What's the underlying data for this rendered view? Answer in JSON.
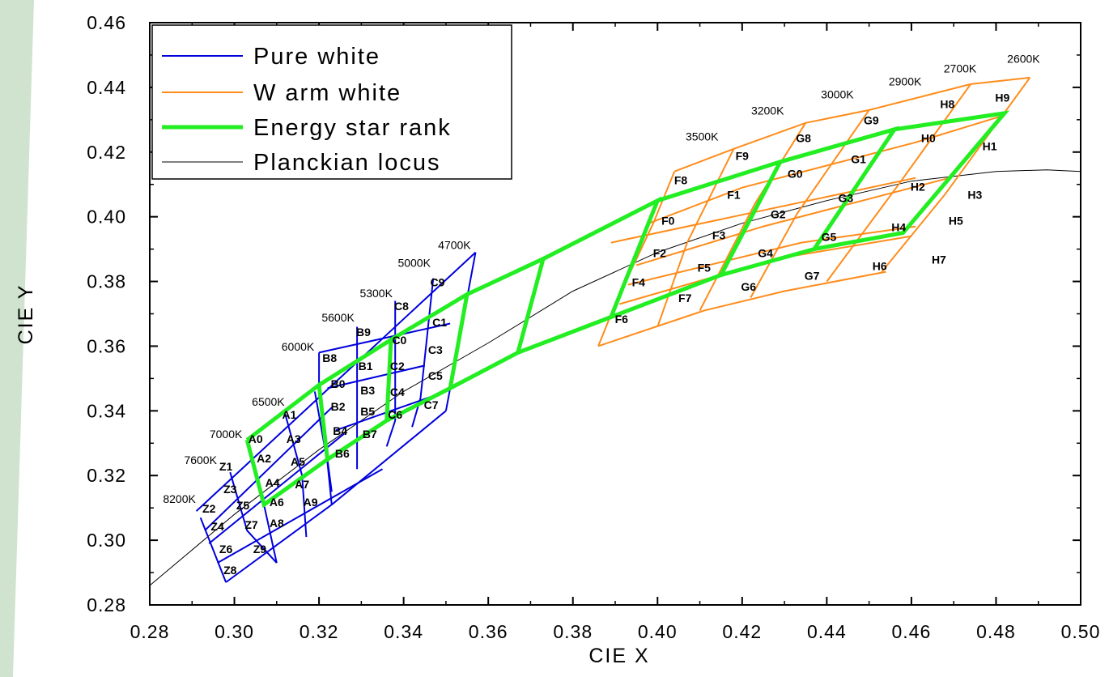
{
  "colors": {
    "pure_white": "#0000dd",
    "warm_white": "#ff8c1a",
    "energy_star": "#22ee22",
    "planckian": "#000000",
    "side_band": "#cfe3cf"
  },
  "chart_data": {
    "type": "line",
    "xlabel": "CIE X",
    "ylabel": "CIE Y",
    "xlim": [
      0.28,
      0.5
    ],
    "ylim": [
      0.28,
      0.46
    ],
    "x_ticks": [
      "0.28",
      "0.30",
      "0.32",
      "0.34",
      "0.36",
      "0.38",
      "0.40",
      "0.42",
      "0.44",
      "0.46",
      "0.48",
      "0.50"
    ],
    "y_ticks": [
      "0.28",
      "0.30",
      "0.32",
      "0.34",
      "0.36",
      "0.38",
      "0.40",
      "0.42",
      "0.44",
      "0.46"
    ],
    "grid": false,
    "legend_position": "top-left",
    "legend": [
      {
        "label": "Pure white",
        "series": "pure_white"
      },
      {
        "label": "W arm white",
        "series": "warm_white"
      },
      {
        "label": "Energy star rank",
        "series": "energy_star"
      },
      {
        "label": "Planckian locus",
        "series": "planckian"
      }
    ],
    "series": [
      {
        "id": "pure_white",
        "name": "Pure white",
        "segments": [
          [
            [
              0.291,
              0.309
            ],
            [
              0.357,
              0.389
            ]
          ],
          [
            [
              0.293,
              0.303
            ],
            [
              0.323,
              0.341
            ]
          ],
          [
            [
              0.294,
              0.299
            ],
            [
              0.326,
              0.333
            ]
          ],
          [
            [
              0.296,
              0.293
            ],
            [
              0.335,
              0.322
            ]
          ],
          [
            [
              0.298,
              0.287
            ],
            [
              0.323,
              0.311
            ]
          ],
          [
            [
              0.32,
              0.358
            ],
            [
              0.351,
              0.367
            ]
          ],
          [
            [
              0.322,
              0.347
            ],
            [
              0.345,
              0.354
            ]
          ],
          [
            [
              0.324,
              0.334
            ],
            [
              0.35,
              0.346
            ]
          ],
          [
            [
              0.323,
              0.311
            ],
            [
              0.35,
              0.34
            ]
          ],
          [
            [
              0.292,
              0.307
            ],
            [
              0.298,
              0.287
            ]
          ],
          [
            [
              0.299,
              0.321
            ],
            [
              0.303,
              0.303
            ],
            [
              0.31,
              0.293
            ]
          ],
          [
            [
              0.303,
              0.331
            ],
            [
              0.307,
              0.311
            ],
            [
              0.31,
              0.293
            ]
          ],
          [
            [
              0.312,
              0.339
            ],
            [
              0.316,
              0.32
            ],
            [
              0.317,
              0.301
            ]
          ],
          [
            [
              0.319,
              0.346
            ],
            [
              0.322,
              0.324
            ],
            [
              0.323,
              0.311
            ]
          ],
          [
            [
              0.32,
              0.358
            ],
            [
              0.32,
              0.347
            ],
            [
              0.322,
              0.325
            ],
            [
              0.323,
              0.315
            ]
          ],
          [
            [
              0.329,
              0.366
            ],
            [
              0.329,
              0.322
            ]
          ],
          [
            [
              0.338,
              0.374
            ],
            [
              0.338,
              0.337
            ],
            [
              0.336,
              0.329
            ]
          ],
          [
            [
              0.347,
              0.381
            ],
            [
              0.344,
              0.344
            ],
            [
              0.342,
              0.335
            ]
          ],
          [
            [
              0.357,
              0.389
            ],
            [
              0.352,
              0.354
            ],
            [
              0.35,
              0.34
            ]
          ]
        ]
      },
      {
        "id": "warm_white",
        "name": "W arm white",
        "segments": [
          [
            [
              0.404,
              0.414
            ],
            [
              0.418,
              0.421
            ],
            [
              0.435,
              0.429
            ],
            [
              0.45,
              0.433
            ],
            [
              0.474,
              0.441
            ],
            [
              0.488,
              0.443
            ]
          ],
          [
            [
              0.398,
              0.398
            ],
            [
              0.42,
              0.409
            ],
            [
              0.461,
              0.423
            ],
            [
              0.481,
              0.431
            ]
          ],
          [
            [
              0.395,
              0.385
            ],
            [
              0.425,
              0.397
            ],
            [
              0.469,
              0.412
            ]
          ],
          [
            [
              0.391,
              0.373
            ],
            [
              0.428,
              0.387
            ],
            [
              0.46,
              0.394
            ]
          ],
          [
            [
              0.386,
              0.36
            ],
            [
              0.411,
              0.371
            ],
            [
              0.43,
              0.377
            ],
            [
              0.454,
              0.383
            ]
          ],
          [
            [
              0.389,
              0.392
            ],
            [
              0.425,
              0.402
            ],
            [
              0.461,
              0.412
            ]
          ],
          [
            [
              0.393,
              0.379
            ],
            [
              0.434,
              0.392
            ],
            [
              0.461,
              0.397
            ]
          ],
          [
            [
              0.404,
              0.414
            ],
            [
              0.399,
              0.398
            ],
            [
              0.39,
              0.373
            ],
            [
              0.386,
              0.36
            ]
          ],
          [
            [
              0.418,
              0.421
            ],
            [
              0.407,
              0.392
            ],
            [
              0.4,
              0.366
            ]
          ],
          [
            [
              0.435,
              0.429
            ],
            [
              0.423,
              0.404
            ],
            [
              0.41,
              0.371
            ]
          ],
          [
            [
              0.45,
              0.433
            ],
            [
              0.433,
              0.401
            ],
            [
              0.422,
              0.375
            ]
          ],
          [
            [
              0.474,
              0.441
            ],
            [
              0.457,
              0.41
            ],
            [
              0.44,
              0.38
            ]
          ],
          [
            [
              0.488,
              0.443
            ],
            [
              0.468,
              0.407
            ],
            [
              0.453,
              0.383
            ]
          ]
        ]
      },
      {
        "id": "energy_star",
        "name": "Energy star rank",
        "segments": [
          [
            [
              0.303,
              0.331
            ],
            [
              0.307,
              0.311
            ],
            [
              0.322,
              0.325
            ],
            [
              0.32,
              0.348
            ],
            [
              0.303,
              0.331
            ]
          ],
          [
            [
              0.32,
              0.348
            ],
            [
              0.337,
              0.362
            ],
            [
              0.336,
              0.337
            ],
            [
              0.322,
              0.325
            ]
          ],
          [
            [
              0.337,
              0.362
            ],
            [
              0.355,
              0.376
            ],
            [
              0.351,
              0.347
            ],
            [
              0.336,
              0.337
            ]
          ],
          [
            [
              0.355,
              0.376
            ],
            [
              0.373,
              0.387
            ],
            [
              0.367,
              0.358
            ],
            [
              0.351,
              0.347
            ]
          ],
          [
            [
              0.373,
              0.387
            ],
            [
              0.4,
              0.405
            ],
            [
              0.389,
              0.369
            ],
            [
              0.367,
              0.358
            ]
          ],
          [
            [
              0.4,
              0.405
            ],
            [
              0.429,
              0.417
            ],
            [
              0.415,
              0.382
            ],
            [
              0.389,
              0.369
            ]
          ],
          [
            [
              0.429,
              0.417
            ],
            [
              0.456,
              0.427
            ],
            [
              0.437,
              0.39
            ],
            [
              0.415,
              0.382
            ]
          ],
          [
            [
              0.456,
              0.427
            ],
            [
              0.482,
              0.432
            ],
            [
              0.458,
              0.395
            ],
            [
              0.437,
              0.39
            ]
          ]
        ]
      },
      {
        "id": "planckian",
        "name": "Planckian locus",
        "points": [
          [
            0.28,
            0.286
          ],
          [
            0.3,
            0.308
          ],
          [
            0.32,
            0.328
          ],
          [
            0.34,
            0.346
          ],
          [
            0.36,
            0.361
          ],
          [
            0.38,
            0.377
          ],
          [
            0.4,
            0.389
          ],
          [
            0.42,
            0.398
          ],
          [
            0.44,
            0.405
          ],
          [
            0.46,
            0.411
          ],
          [
            0.48,
            0.414
          ],
          [
            0.492,
            0.4145
          ],
          [
            0.5,
            0.414
          ]
        ]
      }
    ],
    "cell_labels": [
      {
        "text": "Z1",
        "x": 0.298,
        "y": 0.3225
      },
      {
        "text": "Z3",
        "x": 0.299,
        "y": 0.3155
      },
      {
        "text": "Z2",
        "x": 0.294,
        "y": 0.3095
      },
      {
        "text": "Z5",
        "x": 0.302,
        "y": 0.3105
      },
      {
        "text": "Z4",
        "x": 0.296,
        "y": 0.304
      },
      {
        "text": "Z7",
        "x": 0.304,
        "y": 0.3045
      },
      {
        "text": "Z6",
        "x": 0.298,
        "y": 0.297
      },
      {
        "text": "Z9",
        "x": 0.306,
        "y": 0.297
      },
      {
        "text": "Z8",
        "x": 0.299,
        "y": 0.2905
      },
      {
        "text": "A0",
        "x": 0.305,
        "y": 0.331
      },
      {
        "text": "A1",
        "x": 0.313,
        "y": 0.3385
      },
      {
        "text": "A2",
        "x": 0.307,
        "y": 0.325
      },
      {
        "text": "A3",
        "x": 0.314,
        "y": 0.331
      },
      {
        "text": "A4",
        "x": 0.309,
        "y": 0.3175
      },
      {
        "text": "A5",
        "x": 0.315,
        "y": 0.324
      },
      {
        "text": "A6",
        "x": 0.31,
        "y": 0.3115
      },
      {
        "text": "A7",
        "x": 0.316,
        "y": 0.317
      },
      {
        "text": "A8",
        "x": 0.31,
        "y": 0.305
      },
      {
        "text": "A9",
        "x": 0.318,
        "y": 0.3115
      },
      {
        "text": "B8",
        "x": 0.3225,
        "y": 0.356
      },
      {
        "text": "B9",
        "x": 0.3305,
        "y": 0.364
      },
      {
        "text": "B0",
        "x": 0.3245,
        "y": 0.348
      },
      {
        "text": "B1",
        "x": 0.331,
        "y": 0.3535
      },
      {
        "text": "B2",
        "x": 0.3245,
        "y": 0.341
      },
      {
        "text": "B3",
        "x": 0.3315,
        "y": 0.346
      },
      {
        "text": "B4",
        "x": 0.325,
        "y": 0.3335
      },
      {
        "text": "B5",
        "x": 0.3315,
        "y": 0.3395
      },
      {
        "text": "B6",
        "x": 0.3255,
        "y": 0.3265
      },
      {
        "text": "B7",
        "x": 0.332,
        "y": 0.3325
      },
      {
        "text": "C8",
        "x": 0.3395,
        "y": 0.372
      },
      {
        "text": "C9",
        "x": 0.348,
        "y": 0.3795
      },
      {
        "text": "C0",
        "x": 0.339,
        "y": 0.3615
      },
      {
        "text": "C1",
        "x": 0.3485,
        "y": 0.367
      },
      {
        "text": "C2",
        "x": 0.3385,
        "y": 0.3535
      },
      {
        "text": "C3",
        "x": 0.3475,
        "y": 0.3585
      },
      {
        "text": "C4",
        "x": 0.3385,
        "y": 0.3455
      },
      {
        "text": "C5",
        "x": 0.3475,
        "y": 0.3505
      },
      {
        "text": "C6",
        "x": 0.338,
        "y": 0.3385
      },
      {
        "text": "C7",
        "x": 0.3465,
        "y": 0.3415
      },
      {
        "text": "F8",
        "x": 0.4055,
        "y": 0.411
      },
      {
        "text": "F9",
        "x": 0.42,
        "y": 0.4185
      },
      {
        "text": "F0",
        "x": 0.4025,
        "y": 0.3985
      },
      {
        "text": "F1",
        "x": 0.418,
        "y": 0.4065
      },
      {
        "text": "F2",
        "x": 0.4005,
        "y": 0.3885
      },
      {
        "text": "F3",
        "x": 0.4145,
        "y": 0.394
      },
      {
        "text": "F4",
        "x": 0.3955,
        "y": 0.3795
      },
      {
        "text": "F5",
        "x": 0.411,
        "y": 0.384
      },
      {
        "text": "F6",
        "x": 0.3915,
        "y": 0.368
      },
      {
        "text": "F7",
        "x": 0.4065,
        "y": 0.3745
      },
      {
        "text": "G8",
        "x": 0.4345,
        "y": 0.424
      },
      {
        "text": "G9",
        "x": 0.4505,
        "y": 0.4295
      },
      {
        "text": "G0",
        "x": 0.4325,
        "y": 0.413
      },
      {
        "text": "G1",
        "x": 0.4475,
        "y": 0.4175
      },
      {
        "text": "G2",
        "x": 0.4285,
        "y": 0.4005
      },
      {
        "text": "G3",
        "x": 0.4445,
        "y": 0.4055
      },
      {
        "text": "G4",
        "x": 0.4255,
        "y": 0.3885
      },
      {
        "text": "G5",
        "x": 0.4405,
        "y": 0.3935
      },
      {
        "text": "G6",
        "x": 0.4215,
        "y": 0.378
      },
      {
        "text": "G7",
        "x": 0.4365,
        "y": 0.3815
      },
      {
        "text": "H8",
        "x": 0.4685,
        "y": 0.4345
      },
      {
        "text": "H9",
        "x": 0.4815,
        "y": 0.4365
      },
      {
        "text": "H0",
        "x": 0.464,
        "y": 0.424
      },
      {
        "text": "H1",
        "x": 0.4785,
        "y": 0.4215
      },
      {
        "text": "H2",
        "x": 0.4615,
        "y": 0.409
      },
      {
        "text": "H3",
        "x": 0.475,
        "y": 0.4065
      },
      {
        "text": "H4",
        "x": 0.457,
        "y": 0.3965
      },
      {
        "text": "H5",
        "x": 0.4705,
        "y": 0.3985
      },
      {
        "text": "H6",
        "x": 0.4525,
        "y": 0.3845
      },
      {
        "text": "H7",
        "x": 0.4665,
        "y": 0.3865
      }
    ],
    "temperature_labels": [
      {
        "text": "8200K",
        "x": 0.287,
        "y": 0.3125
      },
      {
        "text": "7600K",
        "x": 0.292,
        "y": 0.3245
      },
      {
        "text": "7000K",
        "x": 0.298,
        "y": 0.3325
      },
      {
        "text": "6500K",
        "x": 0.308,
        "y": 0.3425
      },
      {
        "text": "6000K",
        "x": 0.315,
        "y": 0.3595
      },
      {
        "text": "5600K",
        "x": 0.3245,
        "y": 0.3685
      },
      {
        "text": "5300K",
        "x": 0.3335,
        "y": 0.376
      },
      {
        "text": "5000K",
        "x": 0.3425,
        "y": 0.3855
      },
      {
        "text": "4700K",
        "x": 0.352,
        "y": 0.391
      },
      {
        "text": "3500K",
        "x": 0.4105,
        "y": 0.4245
      },
      {
        "text": "3200K",
        "x": 0.426,
        "y": 0.4325
      },
      {
        "text": "3000K",
        "x": 0.4425,
        "y": 0.4375
      },
      {
        "text": "2900K",
        "x": 0.4585,
        "y": 0.4415
      },
      {
        "text": "2700K",
        "x": 0.4715,
        "y": 0.4455
      },
      {
        "text": "2600K",
        "x": 0.4865,
        "y": 0.4485
      }
    ]
  }
}
